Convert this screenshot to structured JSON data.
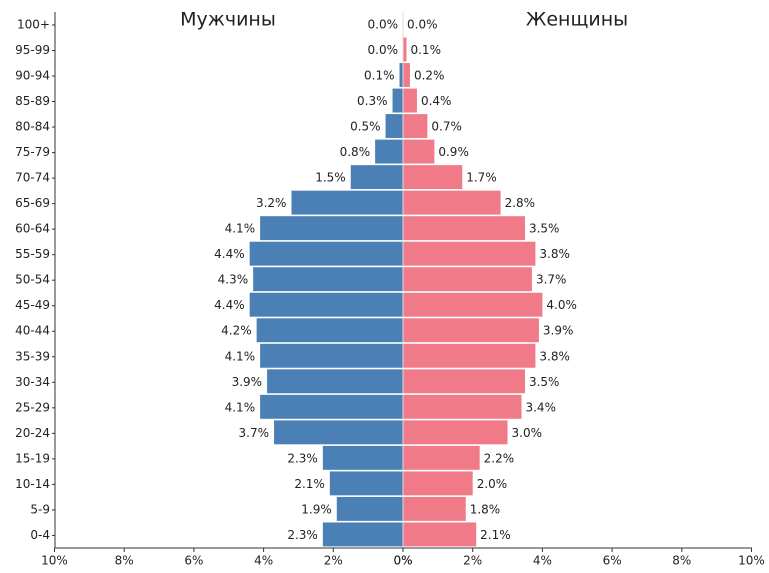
{
  "chart_data": {
    "type": "pyramid",
    "left_title": "Мужчины",
    "right_title": "Женщины",
    "categories": [
      "100+",
      "95-99",
      "90-94",
      "85-89",
      "80-84",
      "75-79",
      "70-74",
      "65-69",
      "60-64",
      "55-59",
      "50-54",
      "45-49",
      "40-44",
      "35-39",
      "30-34",
      "25-29",
      "20-24",
      "15-19",
      "10-14",
      "5-9",
      "0-4"
    ],
    "series": [
      {
        "name": "Мужчины",
        "color": "#4a80b5",
        "side": "left",
        "values": [
          0.0,
          0.0,
          0.1,
          0.3,
          0.5,
          0.8,
          1.5,
          3.2,
          4.1,
          4.4,
          4.3,
          4.4,
          4.2,
          4.1,
          3.9,
          4.1,
          3.7,
          2.3,
          2.1,
          1.9,
          2.3
        ],
        "value_labels": [
          "0.0%",
          "0.0%",
          "0.1%",
          "0.3%",
          "0.5%",
          "0.8%",
          "1.5%",
          "3.2%",
          "4.1%",
          "4.4%",
          "4.3%",
          "4.4%",
          "4.2%",
          "4.1%",
          "3.9%",
          "4.1%",
          "3.7%",
          "2.3%",
          "2.1%",
          "1.9%",
          "2.3%"
        ]
      },
      {
        "name": "Женщины",
        "color": "#f07a88",
        "side": "right",
        "values": [
          0.0,
          0.1,
          0.2,
          0.4,
          0.7,
          0.9,
          1.7,
          2.8,
          3.5,
          3.8,
          3.7,
          4.0,
          3.9,
          3.8,
          3.5,
          3.4,
          3.0,
          2.2,
          2.0,
          1.8,
          2.1
        ],
        "value_labels": [
          "0.0%",
          "0.1%",
          "0.2%",
          "0.4%",
          "0.7%",
          "0.9%",
          "1.7%",
          "2.8%",
          "3.5%",
          "3.8%",
          "3.7%",
          "4.0%",
          "3.9%",
          "3.8%",
          "3.5%",
          "3.4%",
          "3.0%",
          "2.2%",
          "2.0%",
          "1.8%",
          "2.1%"
        ]
      }
    ],
    "xlim": [
      0,
      10
    ],
    "xticks_left": [
      {
        "value": 10,
        "label": "10%"
      },
      {
        "value": 8,
        "label": "8%"
      },
      {
        "value": 6,
        "label": "6%"
      },
      {
        "value": 4,
        "label": "4%"
      },
      {
        "value": 2,
        "label": "2%"
      },
      {
        "value": 0,
        "label": "0%"
      }
    ],
    "xticks_right": [
      {
        "value": 0,
        "label": "0%"
      },
      {
        "value": 2,
        "label": "2%"
      },
      {
        "value": 4,
        "label": "4%"
      },
      {
        "value": 6,
        "label": "6%"
      },
      {
        "value": 8,
        "label": "8%"
      },
      {
        "value": 10,
        "label": "10%"
      }
    ]
  }
}
